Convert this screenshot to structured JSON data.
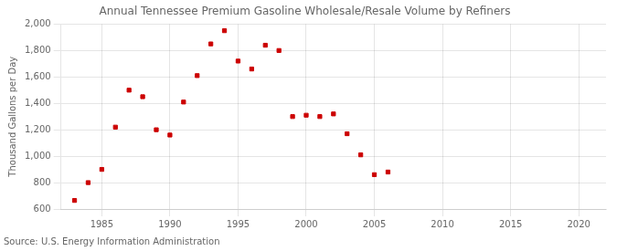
{
  "chart_data": {
    "type": "scatter",
    "title": "Annual Tennessee Premium Gasoline Wholesale/Resale Volume by Refiners",
    "ylabel": "Thousand Gallons per Day",
    "annotation": "Source: U.S. Energy Information Administration",
    "x": [
      1983,
      1984,
      1985,
      1986,
      1987,
      1988,
      1989,
      1990,
      1991,
      1992,
      1993,
      1994,
      1995,
      1996,
      1997,
      1998,
      1999,
      2000,
      2001,
      2002,
      2003,
      2004,
      2005,
      2006
    ],
    "values": [
      665,
      800,
      900,
      1220,
      1500,
      1450,
      1200,
      1160,
      1410,
      1610,
      1850,
      1950,
      1720,
      1660,
      1840,
      1800,
      1300,
      1310,
      1300,
      1320,
      1170,
      1010,
      860,
      880
    ],
    "color": "#cc0000",
    "marker": "square",
    "xlim": [
      1982,
      2022
    ],
    "xticks": [
      1985,
      1990,
      1995,
      2000,
      2005,
      2010,
      2015,
      2020
    ],
    "ylim": [
      600,
      2000
    ],
    "yticks": [
      600,
      800,
      {
        "value": 1000,
        "label": "1,000"
      },
      {
        "value": 1200,
        "label": "1,200"
      },
      {
        "value": 1400,
        "label": "1,400"
      },
      {
        "value": 1600,
        "label": "1,600"
      },
      {
        "value": 1800,
        "label": "1,800"
      },
      {
        "value": 2000,
        "label": "2,000"
      }
    ],
    "grid": true
  }
}
